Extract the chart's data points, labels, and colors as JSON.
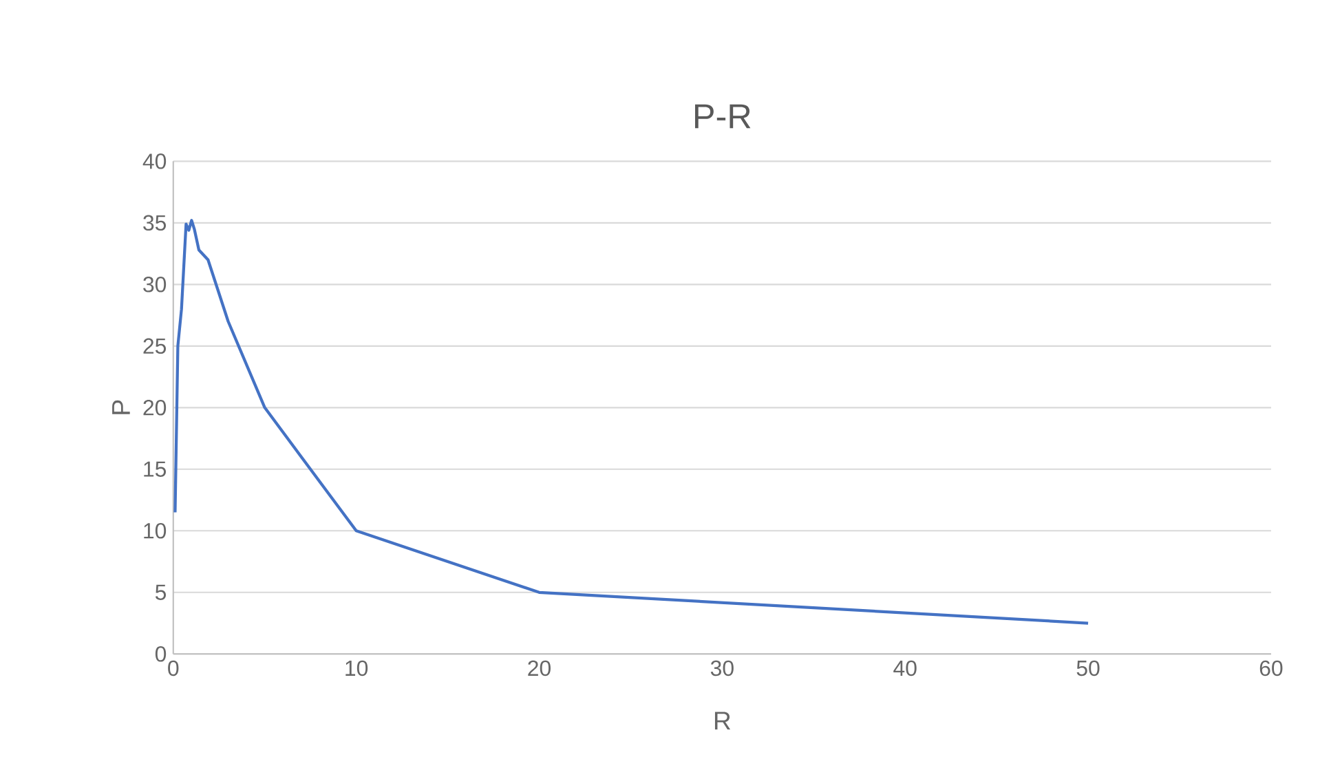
{
  "chart_data": {
    "type": "line",
    "title": "P-R",
    "xlabel": "R",
    "ylabel": "P",
    "x": [
      0.1,
      0.25,
      0.45,
      0.7,
      0.85,
      1.0,
      1.15,
      1.4,
      1.9,
      3,
      5,
      7,
      10,
      20,
      50
    ],
    "series": [
      {
        "color": "#4472c4",
        "values": [
          11.5,
          25,
          28,
          34.9,
          34.4,
          35.2,
          34.5,
          32.8,
          32,
          27,
          20,
          16,
          10,
          5,
          2.5
        ]
      }
    ],
    "xlim": [
      0,
      60
    ],
    "xticks": [
      0,
      10,
      20,
      30,
      40,
      50,
      60
    ],
    "ylim": [
      0,
      40
    ],
    "yticks": [
      0,
      5,
      10,
      15,
      20,
      25,
      30,
      35,
      40
    ],
    "grid": "y",
    "marker": "none",
    "line_style": "solid"
  }
}
